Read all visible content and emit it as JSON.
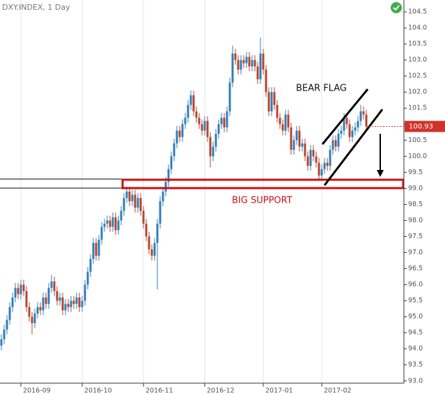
{
  "chart_data": {
    "type": "candlestick",
    "title": "DXY.INDEX, 1 Day",
    "annotations": [
      "BEAR FLAG",
      "BIG SUPPORT"
    ],
    "up_color": "#2f7fb8",
    "down_color": "#b5442f",
    "xlim": [
      -0.5,
      144.5
    ],
    "ylim": [
      92.93,
      104.87
    ],
    "grid": "x",
    "xticks": [
      {
        "value": 7,
        "label": "2016-09"
      },
      {
        "value": 29,
        "label": "2016-10"
      },
      {
        "value": 51,
        "label": "2016-11"
      },
      {
        "value": 73,
        "label": "2016-12"
      },
      {
        "value": 94,
        "label": "2017-01"
      },
      {
        "value": 115,
        "label": "2017-02"
      }
    ],
    "yticks": [
      {
        "value": 93,
        "label": "93.0"
      },
      93.5,
      {
        "value": 94,
        "label": "94.0"
      },
      94.5,
      {
        "value": 95,
        "label": "95.0"
      },
      95.5,
      {
        "value": 96,
        "label": "96.0"
      },
      96.5,
      {
        "value": 97,
        "label": "97.0"
      },
      97.5,
      {
        "value": 98,
        "label": "98.0"
      },
      98.5,
      {
        "value": 99,
        "label": "99.0"
      },
      99.5,
      {
        "value": 100,
        "label": "100.0"
      },
      100.5,
      {
        "value": 101,
        "label": "101.0"
      },
      101.5,
      {
        "value": 102,
        "label": "102.0"
      },
      102.5,
      {
        "value": 103,
        "label": "103.0"
      },
      103.5,
      {
        "value": 104,
        "label": "104.0"
      },
      104.5
    ],
    "open": [
      94.1,
      94.3,
      94.6,
      94.9,
      95.3,
      95.6,
      95.9,
      95.7,
      96.0,
      95.8,
      95.3,
      95.0,
      94.8,
      95.1,
      95.3,
      95.2,
      95.6,
      95.4,
      95.9,
      96.1,
      95.8,
      95.5,
      95.6,
      95.2,
      95.4,
      95.3,
      95.5,
      95.4,
      95.6,
      95.3,
      95.5,
      96.0,
      96.4,
      96.8,
      97.3,
      96.9,
      97.4,
      97.8,
      97.9,
      98.0,
      97.8,
      98.1,
      97.7,
      98.0,
      98.3,
      98.7,
      98.9,
      98.6,
      98.8,
      98.4,
      98.7,
      98.3,
      97.9,
      97.5,
      97.1,
      96.9,
      97.3,
      97.9,
      98.6,
      98.9,
      99.2,
      99.6,
      100.0,
      100.4,
      100.8,
      100.6,
      101.0,
      101.2,
      101.6,
      101.9,
      101.4,
      101.2,
      101.0,
      100.8,
      101.1,
      100.6,
      100.0,
      100.3,
      100.7,
      101.0,
      101.2,
      100.9,
      101.4,
      102.3,
      103.2,
      103.0,
      102.7,
      103.0,
      102.9,
      103.1,
      102.8,
      103.0,
      102.8,
      102.4,
      103.2,
      102.7,
      102.0,
      101.4,
      102.0,
      101.6,
      101.2,
      101.0,
      100.8,
      101.3,
      100.9,
      100.2,
      100.5,
      100.8,
      100.3,
      100.4,
      100.0,
      99.7,
      100.2,
      100.0,
      99.8,
      99.4,
      99.6,
      99.8,
      99.7,
      100.2,
      100.5,
      100.3,
      100.7,
      100.8,
      101.2,
      101.0,
      100.6,
      100.8,
      100.9,
      101.1,
      101.4,
      101.3
    ],
    "high": [
      94.45,
      94.75,
      95.05,
      95.45,
      95.75,
      96.05,
      96.05,
      96.15,
      96.15,
      95.95,
      95.45,
      95.15,
      95.25,
      95.45,
      95.45,
      95.75,
      95.75,
      96.05,
      96.3,
      96.25,
      95.95,
      95.75,
      95.75,
      95.55,
      95.55,
      95.65,
      95.65,
      95.75,
      95.75,
      95.65,
      96.15,
      96.55,
      96.95,
      97.45,
      97.45,
      97.55,
      97.95,
      98.05,
      98.15,
      98.15,
      98.25,
      98.25,
      98.15,
      98.45,
      98.85,
      99.05,
      99.05,
      98.95,
      98.95,
      98.85,
      98.85,
      98.45,
      98.05,
      97.65,
      97.25,
      97.45,
      98.05,
      98.75,
      99.05,
      99.35,
      99.75,
      100.15,
      100.55,
      100.95,
      100.95,
      101.15,
      101.35,
      101.75,
      102.05,
      102.05,
      101.55,
      101.35,
      101.15,
      101.25,
      101.25,
      100.75,
      100.45,
      100.85,
      101.15,
      101.35,
      101.35,
      101.55,
      102.45,
      103.45,
      103.35,
      103.15,
      103.15,
      103.15,
      103.25,
      103.25,
      103.15,
      103.15,
      102.95,
      103.7,
      103.35,
      102.85,
      102.15,
      102.15,
      102.15,
      101.75,
      101.35,
      101.15,
      101.45,
      101.45,
      101.05,
      100.65,
      100.95,
      100.95,
      100.55,
      100.55,
      100.15,
      100.35,
      100.35,
      100.15,
      99.95,
      99.75,
      99.95,
      99.95,
      100.35,
      100.65,
      100.65,
      100.85,
      100.95,
      101.35,
      101.35,
      101.15,
      100.95,
      101.05,
      101.25,
      101.6,
      101.55,
      101.45
    ],
    "low": [
      93.95,
      94.15,
      94.45,
      94.75,
      95.15,
      95.45,
      95.55,
      95.55,
      95.65,
      95.15,
      94.85,
      94.45,
      94.65,
      94.95,
      95.05,
      95.05,
      95.25,
      95.25,
      95.75,
      95.65,
      95.35,
      95.35,
      95.05,
      95.05,
      95.15,
      95.15,
      95.25,
      95.25,
      95.15,
      95.15,
      95.35,
      95.85,
      96.25,
      96.65,
      96.75,
      96.75,
      97.25,
      97.65,
      97.75,
      97.65,
      97.65,
      97.55,
      97.55,
      97.85,
      98.15,
      98.55,
      98.45,
      98.45,
      98.25,
      98.25,
      98.15,
      97.75,
      97.35,
      96.95,
      96.75,
      96.75,
      95.85,
      97.75,
      98.45,
      98.75,
      99.05,
      99.45,
      99.85,
      100.25,
      100.45,
      100.45,
      100.85,
      101.05,
      101.45,
      101.25,
      101.05,
      100.85,
      100.65,
      100.65,
      100.45,
      99.65,
      99.85,
      100.15,
      100.55,
      100.85,
      100.75,
      100.75,
      101.25,
      102.15,
      102.85,
      102.55,
      102.55,
      102.75,
      102.75,
      102.65,
      102.65,
      102.65,
      102.25,
      102.25,
      102.55,
      101.85,
      101.25,
      101.25,
      101.45,
      101.05,
      100.85,
      100.65,
      100.65,
      100.75,
      100.05,
      100.05,
      100.35,
      100.15,
      100.15,
      99.85,
      99.55,
      99.55,
      99.85,
      99.65,
      99.25,
      99.25,
      99.45,
      99.55,
      99.55,
      100.05,
      100.15,
      100.15,
      100.55,
      100.65,
      100.85,
      100.45,
      100.45,
      100.65,
      100.75,
      100.95,
      101.15,
      100.8
    ],
    "close": [
      94.3,
      94.6,
      94.9,
      95.3,
      95.6,
      95.9,
      95.7,
      96.0,
      95.8,
      95.3,
      95.0,
      94.8,
      95.1,
      95.3,
      95.2,
      95.6,
      95.4,
      95.9,
      96.1,
      95.8,
      95.5,
      95.6,
      95.2,
      95.4,
      95.3,
      95.5,
      95.4,
      95.6,
      95.3,
      95.5,
      96.0,
      96.4,
      96.8,
      97.3,
      96.9,
      97.4,
      97.8,
      97.9,
      98.0,
      97.8,
      98.1,
      97.7,
      98.0,
      98.3,
      98.7,
      98.9,
      98.6,
      98.8,
      98.4,
      98.7,
      98.3,
      97.9,
      97.5,
      97.1,
      96.9,
      97.3,
      97.9,
      98.6,
      98.9,
      99.2,
      99.6,
      100.0,
      100.4,
      100.8,
      100.6,
      101.0,
      101.2,
      101.6,
      101.9,
      101.4,
      101.2,
      101.0,
      100.8,
      101.1,
      100.6,
      100.0,
      100.3,
      100.7,
      101.0,
      101.2,
      100.9,
      101.4,
      102.3,
      103.2,
      103.0,
      102.7,
      103.0,
      102.9,
      103.1,
      102.8,
      103.0,
      102.8,
      102.4,
      103.2,
      102.7,
      102.0,
      101.4,
      102.0,
      101.6,
      101.2,
      101.0,
      100.8,
      101.3,
      100.9,
      100.2,
      100.5,
      100.8,
      100.3,
      100.4,
      100.0,
      99.7,
      100.2,
      100.0,
      99.8,
      99.4,
      99.6,
      99.8,
      99.7,
      100.2,
      100.5,
      100.3,
      100.7,
      100.8,
      101.2,
      101.0,
      100.6,
      100.8,
      100.9,
      101.1,
      101.4,
      101.3,
      100.93
    ]
  }
}
